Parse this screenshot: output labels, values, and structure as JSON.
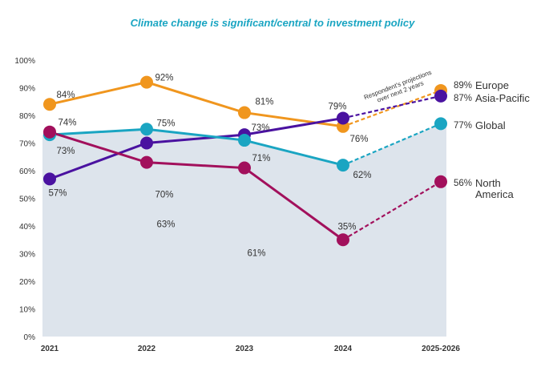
{
  "chart_data": {
    "type": "line",
    "title": "Climate change is significant/central to investment policy",
    "categories": [
      "2021",
      "2022",
      "2023",
      "2024",
      "2025-2026"
    ],
    "ylim": [
      0,
      100
    ],
    "yticks": [
      "0%",
      "10%",
      "20%",
      "30%",
      "40%",
      "50%",
      "60%",
      "70%",
      "80%",
      "90%",
      "100%"
    ],
    "grid": false,
    "shaded_area_series": "Global",
    "projection_note": "Respondent's projections over next 2 years",
    "projection_from": "2024",
    "series": [
      {
        "name": "Europe",
        "color": "#F0961E",
        "values": [
          84,
          92,
          81,
          76,
          89
        ],
        "labels": [
          "84%",
          "92%",
          "81%",
          "76%",
          "89%"
        ]
      },
      {
        "name": "Asia-Pacific",
        "color": "#4A12A0",
        "values": [
          57,
          70,
          73,
          79,
          87
        ],
        "labels": [
          "57%",
          "70%",
          "73%",
          "79%",
          "87%"
        ]
      },
      {
        "name": "Global",
        "color": "#1AA5C2",
        "values": [
          73,
          75,
          71,
          62,
          77
        ],
        "labels": [
          "73%",
          "75%",
          "71%",
          "62%",
          "77%"
        ]
      },
      {
        "name": "North America",
        "name_lines": [
          "North",
          "America"
        ],
        "color": "#A2105C",
        "values": [
          74,
          63,
          61,
          35,
          56
        ],
        "labels": [
          "74%",
          "63%",
          "61%",
          "35%",
          "56%"
        ]
      }
    ],
    "colors": {
      "title": "#1AA5C2",
      "area": "#DDE4EC",
      "text": "#333333"
    }
  }
}
